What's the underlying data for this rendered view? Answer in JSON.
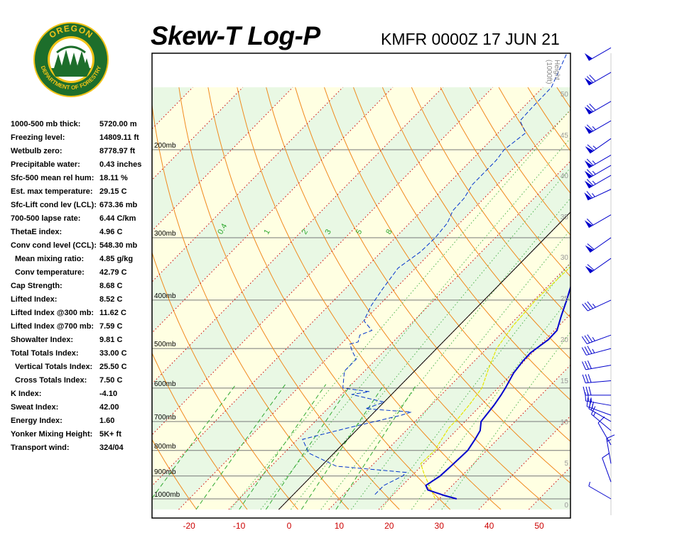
{
  "header": {
    "title": "Skew-T Log-P",
    "station": "KMFR 0000Z 17 JUN 21"
  },
  "logo": {
    "text_top": "OREGON",
    "text_bottom": "DEPARTMENT OF FORESTRY",
    "colors": {
      "ring": "#1d6e2b",
      "gold": "#f2c318"
    }
  },
  "indices": [
    {
      "label": "1000-500 mb thick:",
      "value": "5720.00 m"
    },
    {
      "label": "Freezing level:",
      "value": "14809.11 ft"
    },
    {
      "label": "Wetbulb zero:",
      "value": "8778.97 ft"
    },
    {
      "label": "Precipitable water:",
      "value": "0.43 inches"
    },
    {
      "label": "Sfc-500 mean rel hum:",
      "value": "18.11 %"
    },
    {
      "label": "Est. max temperature:",
      "value": "29.15 C"
    },
    {
      "label": "Sfc-Lift cond lev (LCL):",
      "value": "673.36 mb"
    },
    {
      "label": "700-500 lapse rate:",
      "value": "6.44 C/km"
    },
    {
      "label": "ThetaE index:",
      "value": "4.96 C"
    },
    {
      "label": "Conv cond level (CCL):",
      "value": "548.30 mb"
    },
    {
      "label": "Mean mixing ratio:",
      "value": "4.85 g/kg",
      "sub": true
    },
    {
      "label": "Conv temperature:",
      "value": "42.79 C",
      "sub": true
    },
    {
      "label": "Cap Strength:",
      "value": "8.68 C"
    },
    {
      "label": "Lifted Index:",
      "value": "8.52 C"
    },
    {
      "label": "Lifted Index @300 mb:",
      "value": "11.62 C"
    },
    {
      "label": "Lifted Index @700 mb:",
      "value": "7.59 C"
    },
    {
      "label": "Showalter Index:",
      "value": "9.81 C"
    },
    {
      "label": "Total Totals Index:",
      "value": "33.00 C"
    },
    {
      "label": "Vertical Totals Index:",
      "value": "25.50 C",
      "sub": true
    },
    {
      "label": "Cross Totals Index:",
      "value": "7.50 C",
      "sub": true
    },
    {
      "label": "K Index:",
      "value": "-4.10"
    },
    {
      "label": "Sweat Index:",
      "value": "42.00"
    },
    {
      "label": "Energy Index:",
      "value": "1.60"
    },
    {
      "label": "Yonker Mixing Height:",
      "value": "5K+ ft"
    },
    {
      "label": "Transport wind:",
      "value": "324/04"
    }
  ],
  "chart_data": {
    "type": "line",
    "title": "Skew-T Log-P",
    "x_axis": {
      "unit": "C",
      "range": [
        -28,
        56
      ],
      "ticks": [
        -20,
        -10,
        0,
        10,
        20,
        30,
        40,
        50
      ]
    },
    "pressure_axis": {
      "unit": "mb",
      "log": true,
      "range": [
        1050,
        150
      ],
      "labels": [
        200,
        300,
        400,
        500,
        600,
        700,
        800,
        900,
        1000
      ]
    },
    "height_axis": {
      "title": "Height (1000ft)",
      "labels": [
        0,
        5,
        10,
        15,
        20,
        25,
        30,
        35,
        40,
        45,
        50
      ]
    },
    "mixing_ratio_labels": [
      "0.4",
      "1",
      "2",
      "3",
      "5",
      "8"
    ],
    "mixing_ratio_values": [
      0.4,
      1,
      2,
      3,
      5,
      8
    ],
    "colors": {
      "temperature": "#0000cc",
      "dewpoint": "#0033cc",
      "parcel": "#e6e600",
      "dry_adiabat": "#f08a1e",
      "moist_adiabat": "#4fb34f",
      "mixing_ratio": "#2fa82f",
      "isotherm": "#cc0000",
      "isobar": "#777777",
      "band_green": "#e9f8e4",
      "band_yellow": "#ffffe2"
    },
    "series": [
      {
        "points": [
          [
            33.5,
            1000
          ],
          [
            30.5,
            985
          ],
          [
            26,
            960
          ],
          [
            24.7,
            940
          ],
          [
            25.7,
            900
          ],
          [
            26,
            850
          ],
          [
            26.2,
            800
          ],
          [
            25.5,
            760
          ],
          [
            24.8,
            730
          ],
          [
            23.2,
            700
          ],
          [
            22.6,
            650
          ],
          [
            22,
            620
          ],
          [
            21.5,
            600
          ],
          [
            20.2,
            560
          ],
          [
            19.7,
            530
          ],
          [
            19.6,
            510
          ],
          [
            20.6,
            480
          ],
          [
            20.5,
            460
          ],
          [
            18.5,
            430
          ],
          [
            16.5,
            400
          ],
          [
            14.6,
            375
          ],
          [
            12.9,
            350
          ],
          [
            11.6,
            325
          ],
          [
            10,
            300
          ],
          [
            7.8,
            275
          ],
          [
            6,
            255
          ],
          [
            3.6,
            230
          ],
          [
            2.6,
            215
          ],
          [
            2,
            200
          ],
          [
            1.8,
            185
          ],
          [
            0.6,
            175
          ],
          [
            -0.2,
            160
          ],
          [
            1.2,
            150
          ],
          [
            4.5,
            143
          ],
          [
            11,
            115
          ]
        ]
      },
      {
        "points": [
          [
            16.3,
            980
          ],
          [
            16.3,
            940
          ],
          [
            18.2,
            900
          ],
          [
            18.2,
            885
          ],
          [
            3,
            860
          ],
          [
            -5,
            810
          ],
          [
            -9,
            760
          ],
          [
            -2,
            720
          ],
          [
            2,
            700
          ],
          [
            6,
            680
          ],
          [
            7.4,
            670
          ],
          [
            -2.4,
            660
          ],
          [
            0,
            640
          ],
          [
            -8,
            618
          ],
          [
            -5,
            610
          ],
          [
            -11,
            600
          ],
          [
            -14,
            555
          ],
          [
            -14,
            525
          ],
          [
            -16.5,
            505
          ],
          [
            -18.2,
            490
          ],
          [
            -17,
            485
          ],
          [
            -18,
            470
          ],
          [
            -16.5,
            460
          ],
          [
            -20,
            440
          ],
          [
            -21.5,
            410
          ],
          [
            -22.5,
            380
          ],
          [
            -23.5,
            345
          ],
          [
            -22.2,
            320
          ],
          [
            -22,
            300
          ],
          [
            -22.5,
            280
          ],
          [
            -23.8,
            265
          ],
          [
            -24,
            250
          ],
          [
            -25,
            235
          ],
          [
            -25,
            220
          ],
          [
            -25,
            210
          ],
          [
            -25.5,
            200
          ],
          [
            -24.5,
            185
          ],
          [
            -28,
            175
          ],
          [
            -28.2,
            165
          ],
          [
            -28.3,
            150
          ],
          [
            -33,
            122
          ],
          [
            -34,
            115
          ]
        ]
      },
      {
        "points": [
          [
            29.2,
            1000
          ],
          [
            22,
            890
          ],
          [
            19.4,
            850
          ],
          [
            19.6,
            800
          ],
          [
            18.8,
            760
          ],
          [
            18,
            720
          ],
          [
            18,
            690
          ],
          [
            17.6,
            650
          ],
          [
            16.8,
            600
          ],
          [
            14.4,
            550
          ],
          [
            12,
            500
          ],
          [
            10.8,
            450
          ],
          [
            10.3,
            400
          ],
          [
            10.8,
            330
          ],
          [
            11.5,
            300
          ]
        ]
      }
    ],
    "wind_barbs": [
      {
        "pressure": 1000,
        "dir": 300,
        "speed": 5
      },
      {
        "pressure": 925,
        "dir": 340,
        "speed": 10
      },
      {
        "pressure": 850,
        "dir": 350,
        "speed": 15
      },
      {
        "pressure": 780,
        "dir": 330,
        "speed": 10
      },
      {
        "pressure": 730,
        "dir": 310,
        "speed": 15
      },
      {
        "pressure": 700,
        "dir": 300,
        "speed": 20
      },
      {
        "pressure": 680,
        "dir": 290,
        "speed": 25
      },
      {
        "pressure": 650,
        "dir": 280,
        "speed": 25
      },
      {
        "pressure": 620,
        "dir": 270,
        "speed": 30
      },
      {
        "pressure": 580,
        "dir": 265,
        "speed": 30
      },
      {
        "pressure": 540,
        "dir": 260,
        "speed": 30
      },
      {
        "pressure": 500,
        "dir": 255,
        "speed": 35
      },
      {
        "pressure": 470,
        "dir": 250,
        "speed": 35
      },
      {
        "pressure": 400,
        "dir": 245,
        "speed": 35
      },
      {
        "pressure": 330,
        "dir": 235,
        "speed": 60
      },
      {
        "pressure": 300,
        "dir": 235,
        "speed": 60
      },
      {
        "pressure": 270,
        "dir": 240,
        "speed": 60
      },
      {
        "pressure": 240,
        "dir": 245,
        "speed": 65
      },
      {
        "pressure": 225,
        "dir": 240,
        "speed": 65
      },
      {
        "pressure": 215,
        "dir": 240,
        "speed": 65
      },
      {
        "pressure": 205,
        "dir": 240,
        "speed": 65
      },
      {
        "pressure": 190,
        "dir": 235,
        "speed": 65
      },
      {
        "pressure": 175,
        "dir": 240,
        "speed": 65
      },
      {
        "pressure": 160,
        "dir": 240,
        "speed": 70
      },
      {
        "pressure": 140,
        "dir": 240,
        "speed": 70
      },
      {
        "pressure": 125,
        "dir": 240,
        "speed": 50
      }
    ]
  }
}
